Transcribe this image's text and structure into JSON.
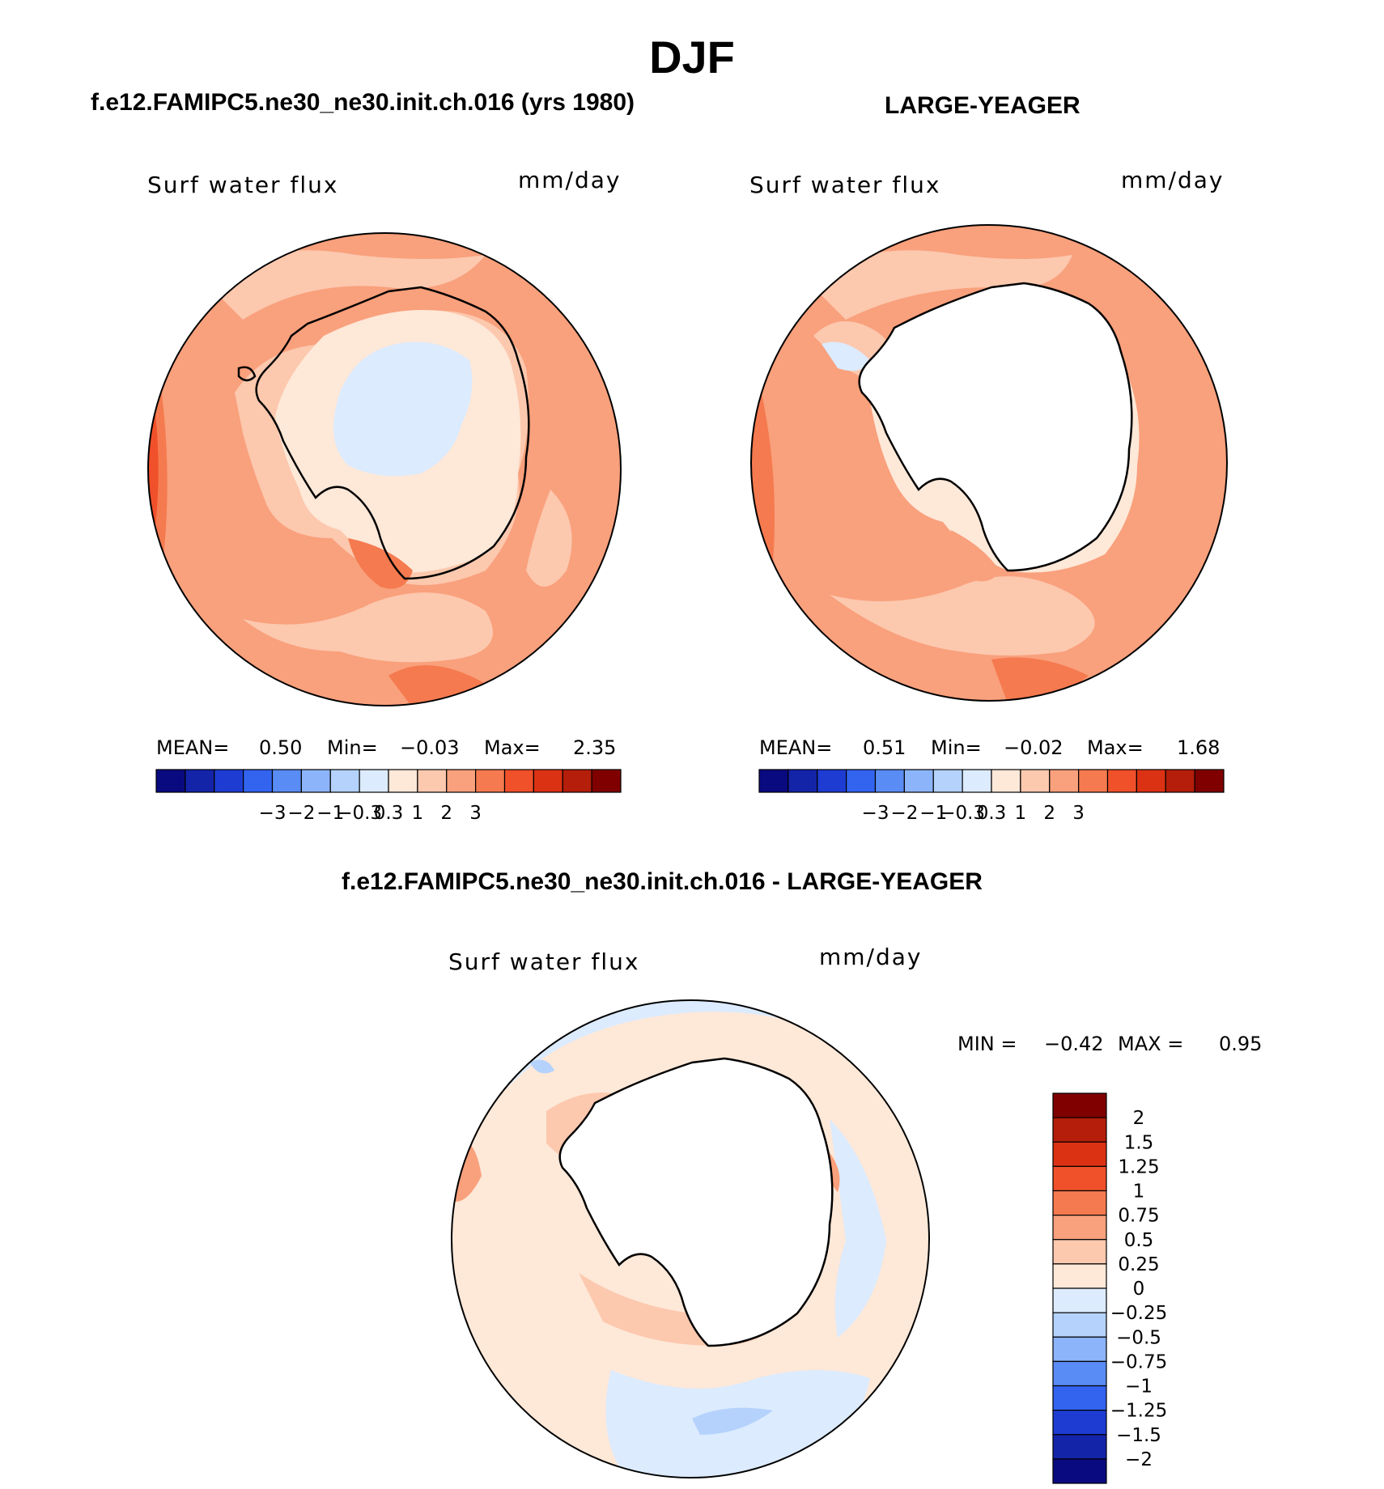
{
  "title": "DJF",
  "panels": [
    {
      "title": "f.e12.FAMIPC5.ne30_ne30.init.ch.016 (yrs 1980)",
      "variable": "Surf water flux",
      "units": "mm/day",
      "stats": {
        "mean_label": "MEAN=",
        "mean": "0.50",
        "min_label": "Min=",
        "min": "−0.03",
        "max_label": "Max=",
        "max": "2.35"
      }
    },
    {
      "title": "LARGE-YEAGER",
      "variable": "Surf water flux",
      "units": "mm/day",
      "stats": {
        "mean_label": "MEAN=",
        "mean": "0.51",
        "min_label": "Min=",
        "min": "−0.02",
        "max_label": "Max=",
        "max": "1.68"
      }
    },
    {
      "title": "f.e12.FAMIPC5.ne30_ne30.init.ch.016 - LARGE-YEAGER",
      "variable": "Surf water flux",
      "units": "mm/day",
      "stats": {
        "min_label": "MIN =",
        "min": "−0.42",
        "max_label": "MAX =",
        "max": "0.95"
      }
    }
  ],
  "colorbar_horizontal": {
    "colors": [
      "#0a0a80",
      "#1424a8",
      "#1e3cd2",
      "#3264f0",
      "#5a8cf5",
      "#8cb4fa",
      "#b4d2fc",
      "#dcebfe",
      "#fee8d8",
      "#fcc8ae",
      "#f9a07c",
      "#f57a4f",
      "#f0502a",
      "#dc3214",
      "#b41e0a",
      "#800000"
    ],
    "labels": [
      "−3",
      "−2",
      "−1",
      "−0.3",
      "0.3",
      "1",
      "2",
      "3"
    ]
  },
  "colorbar_vertical": {
    "colors": [
      "#800000",
      "#b41e0a",
      "#dc3214",
      "#f0502a",
      "#f57a4f",
      "#f9a07c",
      "#fcc8ae",
      "#fee8d8",
      "#dcebfe",
      "#b4d2fc",
      "#8cb4fa",
      "#5a8cf5",
      "#3264f0",
      "#1e3cd2",
      "#1424a8",
      "#0a0a80"
    ],
    "labels": [
      "2",
      "1.5",
      "1.25",
      "1",
      "0.75",
      "0.5",
      "0.25",
      "0",
      "−0.25",
      "−0.5",
      "−0.75",
      "−1",
      "−1.25",
      "−1.5",
      "−2"
    ]
  },
  "map_colors": {
    "ocean_high": "#f57a4f",
    "ocean_mid": "#f9a07c",
    "ocean_low": "#fcc8ae",
    "near_zero_pos": "#fee8d8",
    "near_zero_neg": "#dcebfe",
    "negative": "#b4d2fc",
    "land_blank": "#ffffff",
    "coast": "#000000"
  }
}
